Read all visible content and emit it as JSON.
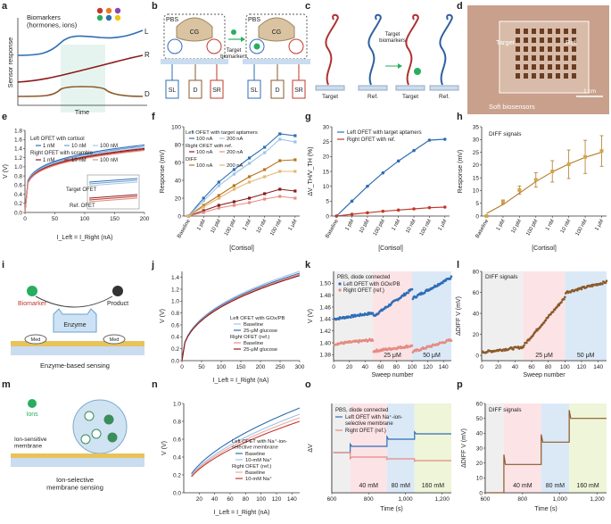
{
  "panel_letters": [
    "a",
    "b",
    "c",
    "d",
    "e",
    "f",
    "g",
    "h",
    "i",
    "j",
    "k",
    "l",
    "m",
    "n",
    "o",
    "p"
  ],
  "colors": {
    "blue": "#2f6db5",
    "red": "#c0392b",
    "darkred": "#8b1a1a",
    "brown": "#8b5a2b",
    "orange": "#d4883a",
    "pink": "#f4b6c2",
    "lightblue": "#9cc3e6",
    "tan": "#c8a46a"
  },
  "panel_a": {
    "title": "Biomarkers\n(hormones, ions)",
    "ylabel": "Sensor response",
    "xlabel": "Time",
    "labels": [
      "L",
      "R",
      "D"
    ]
  },
  "panel_b": {
    "left_box": "PBS",
    "right_box": "PBS",
    "protein": "CG",
    "arrow_label": "Target\nbiomarkers",
    "electrodes": [
      "SL",
      "D",
      "SR"
    ]
  },
  "panel_c": {
    "arrow_label": "Target\nbiomarkers",
    "bases": [
      "Target",
      "Ref.",
      "Target",
      "Ref."
    ]
  },
  "panel_d": {
    "labels": [
      "Target",
      "Ref."
    ],
    "scale": "1 cm",
    "caption": "Soft biosensors"
  },
  "panel_i": {
    "labels": [
      "Biomarker",
      "Product",
      "Enzyme",
      "Med",
      "Med"
    ],
    "caption": "Enzyme-based sensing"
  },
  "panel_m": {
    "labels": [
      "Ions",
      "Ion-sensitive\nmembrane"
    ],
    "caption": "Ion-selective\nmembrane sensing"
  },
  "chart_data": [
    {
      "panel": "e",
      "type": "line",
      "xlabel": "I_Left = I_Right (nA)",
      "ylabel": "V (V)",
      "xlim": [
        0,
        200
      ],
      "ylim": [
        0,
        1.8
      ],
      "xticks": [
        0,
        50,
        100,
        150,
        200
      ],
      "yticks": [
        0,
        0.2,
        0.4,
        0.6,
        0.8,
        1.0,
        1.2,
        1.4,
        1.6,
        1.8
      ],
      "legend": {
        "group1": "Left OFET with cortisol",
        "group1_items": [
          "1 nM",
          "10 nM",
          "100 nM"
        ],
        "group2": "Right OFET with scramble",
        "group2_items": [
          "1 nM",
          "10 nM",
          "100 nM"
        ]
      },
      "inset_labels": [
        "Target OFET",
        "Ref. OFET"
      ],
      "series": [
        {
          "color": "#2f6db5",
          "v_at_200": 1.48
        },
        {
          "color": "#6f9fd6",
          "v_at_200": 1.45
        },
        {
          "color": "#a9c7ea",
          "v_at_200": 1.42
        },
        {
          "color": "#8b1a1a",
          "v_at_200": 1.4
        },
        {
          "color": "#c0392b",
          "v_at_200": 1.38
        },
        {
          "color": "#e58b82",
          "v_at_200": 1.36
        }
      ]
    },
    {
      "panel": "f",
      "type": "line",
      "categories": [
        "Baseline",
        "1 pM",
        "10 pM",
        "100 pM",
        "1 nM",
        "10 nM",
        "100 nM",
        "1 μM"
      ],
      "xlabel": "[Cortisol]",
      "ylabel": "Response (mV)",
      "ylim": [
        0,
        100
      ],
      "yticks": [
        0,
        20,
        40,
        60,
        80,
        100
      ],
      "legend_groups": [
        {
          "title": "Left OFET with target aptamers",
          "items": [
            "100 nA",
            "200 nA"
          ]
        },
        {
          "title": "Right OFET with ref.",
          "items": [
            "100 nA",
            "200 nA"
          ]
        },
        {
          "title": "DIFF",
          "items": [
            "100 nA",
            "200 nA"
          ]
        }
      ],
      "series": [
        {
          "name": "Left 100 nA",
          "color": "#2f6db5",
          "values": [
            0,
            20,
            38,
            52,
            65,
            77,
            92,
            90
          ]
        },
        {
          "name": "Left 200 nA",
          "color": "#9cc3e6",
          "values": [
            0,
            17,
            34,
            47,
            59,
            71,
            86,
            83
          ]
        },
        {
          "name": "Right 100 nA",
          "color": "#8b1a1a",
          "values": [
            0,
            6,
            12,
            16,
            20,
            25,
            30,
            28
          ]
        },
        {
          "name": "Right 200 nA",
          "color": "#e58b82",
          "values": [
            0,
            4,
            9,
            12,
            15,
            19,
            22,
            20
          ]
        },
        {
          "name": "DIFF 100 nA",
          "color": "#b8751f",
          "values": [
            0,
            12,
            23,
            34,
            44,
            52,
            62,
            63
          ]
        },
        {
          "name": "DIFF 200 nA",
          "color": "#e3b873",
          "values": [
            0,
            10,
            20,
            30,
            38,
            44,
            50,
            50
          ]
        }
      ]
    },
    {
      "panel": "g",
      "type": "line",
      "categories": [
        "Baseline",
        "1 pM",
        "10 pM",
        "100 pM",
        "1 nM",
        "10 nM",
        "100 nM",
        "1 μM"
      ],
      "xlabel": "[Cortisol]",
      "ylabel": "ΔV_TH/V_TH (%)",
      "ylim": [
        0,
        30
      ],
      "yticks": [
        0,
        5,
        10,
        15,
        20,
        25,
        30
      ],
      "legend": [
        "Left OFET with target aptamers",
        "Right OFET with ref."
      ],
      "series": [
        {
          "name": "Left OFET with target aptamers",
          "color": "#2f6db5",
          "values": [
            0,
            5,
            10,
            14.5,
            18.5,
            22,
            25.5,
            25.8
          ]
        },
        {
          "name": "Right OFET with ref.",
          "color": "#c0392b",
          "values": [
            0,
            0.6,
            1.1,
            1.6,
            2.0,
            2.4,
            2.8,
            3.0
          ]
        }
      ]
    },
    {
      "panel": "h",
      "type": "scatter",
      "categories": [
        "Baseline",
        "1 pM",
        "10 pM",
        "100 pM",
        "1 nM",
        "10 nM",
        "100 nM",
        "1 μM"
      ],
      "xlabel": "[Cortisol]",
      "ylabel": "Response (mV)",
      "ylim": [
        0,
        35
      ],
      "yticks": [
        0,
        5,
        10,
        15,
        20,
        25,
        30,
        35
      ],
      "annotation": "DIFF signals",
      "values": [
        0,
        5.5,
        10.2,
        14.2,
        17.5,
        20.3,
        23.2,
        25.5
      ],
      "errors": [
        0.5,
        0.8,
        1.6,
        2.8,
        4.2,
        5.6,
        6.5,
        6.0
      ],
      "fit": [
        1.0,
        4.5,
        9.0,
        13.5,
        17.3,
        20.4,
        23.0,
        25.0
      ]
    },
    {
      "panel": "j",
      "type": "line",
      "xlabel": "I_Left = I_Right (nA)",
      "ylabel": "V (V)",
      "xlim": [
        0,
        300
      ],
      "ylim": [
        0,
        1.5
      ],
      "xticks": [
        0,
        50,
        100,
        150,
        200,
        250,
        300
      ],
      "yticks": [
        0,
        0.2,
        0.4,
        0.6,
        0.8,
        1.0,
        1.2,
        1.4
      ],
      "legend_groups": [
        {
          "title": "Left OFET with GOx/PB",
          "items": [
            "Baseline",
            "25-μM glucose"
          ]
        },
        {
          "title": "Right OFET (ref.)",
          "items": [
            "Baseline",
            "25-μM glucose"
          ]
        }
      ],
      "series": [
        {
          "name": "Left Baseline",
          "color": "#9cc3e6",
          "v_at_300": 1.5
        },
        {
          "name": "Left 25-μM glucose",
          "color": "#2f6db5",
          "v_at_300": 1.47
        },
        {
          "name": "Right Baseline",
          "color": "#e58b82",
          "v_at_300": 1.45
        },
        {
          "name": "Right 25-μM glucose",
          "color": "#8b1a1a",
          "v_at_300": 1.43
        }
      ]
    },
    {
      "panel": "k",
      "type": "scatter",
      "xlabel": "Sweep number",
      "ylabel": "V (V)",
      "xlim": [
        0,
        150
      ],
      "ylim": [
        1.37,
        1.52
      ],
      "xticks": [
        0,
        20,
        40,
        60,
        80,
        100,
        120,
        140
      ],
      "yticks": [
        1.38,
        1.4,
        1.42,
        1.44,
        1.46,
        1.48,
        1.5
      ],
      "annotation": "PBS, diode connected",
      "legend": [
        "Left OFET with GOx/PB",
        "Right OFET (ref.)"
      ],
      "regions": [
        {
          "x0": 0,
          "x1": 50,
          "label": "",
          "color": "#efefef"
        },
        {
          "x0": 50,
          "x1": 100,
          "label": "25 μM",
          "color": "#fbe3e6"
        },
        {
          "x0": 100,
          "x1": 150,
          "label": "50 μM",
          "color": "#dbe9f7"
        }
      ],
      "series": [
        {
          "name": "Left OFET with GOx/PB",
          "color": "#2f6db5",
          "segments": [
            {
              "x0": 1,
              "x1": 50,
              "y0": 1.44,
              "y1": 1.45
            },
            {
              "x0": 51,
              "x1": 100,
              "y0": 1.445,
              "y1": 1.49
            },
            {
              "x0": 101,
              "x1": 150,
              "y0": 1.475,
              "y1": 1.51
            }
          ]
        },
        {
          "name": "Right OFET (ref.)",
          "color": "#e58b82",
          "segments": [
            {
              "x0": 1,
              "x1": 50,
              "y0": 1.398,
              "y1": 1.405
            },
            {
              "x0": 51,
              "x1": 100,
              "y0": 1.386,
              "y1": 1.395
            },
            {
              "x0": 101,
              "x1": 150,
              "y0": 1.385,
              "y1": 1.405
            }
          ]
        }
      ]
    },
    {
      "panel": "l",
      "type": "scatter",
      "xlabel": "Sweep number",
      "ylabel": "ΔDIFF V (mV)",
      "xlim": [
        0,
        150
      ],
      "ylim": [
        -5,
        80
      ],
      "xticks": [
        0,
        20,
        40,
        60,
        80,
        100,
        120,
        140
      ],
      "yticks": [
        0,
        20,
        40,
        60,
        80
      ],
      "annotation": "DIFF signals",
      "regions": [
        {
          "x0": 0,
          "x1": 50,
          "label": "",
          "color": "#efefef"
        },
        {
          "x0": 50,
          "x1": 100,
          "label": "25 μM",
          "color": "#fbe3e6"
        },
        {
          "x0": 100,
          "x1": 150,
          "label": "50 μM",
          "color": "#dbe9f7"
        }
      ],
      "series": [
        {
          "name": "DIFF",
          "color": "#8b5a2b",
          "segments": [
            {
              "x0": 1,
              "x1": 50,
              "y0": 3,
              "y1": 8
            },
            {
              "x0": 51,
              "x1": 100,
              "y0": 10,
              "y1": 55
            },
            {
              "x0": 101,
              "x1": 150,
              "y0": 60,
              "y1": 70
            }
          ]
        }
      ]
    },
    {
      "panel": "n",
      "type": "line",
      "xlabel": "I_Left = I_Right (nA)",
      "ylabel": "V (V)",
      "xlim": [
        0,
        150
      ],
      "ylim": [
        0,
        1.0
      ],
      "xticks": [
        20,
        40,
        60,
        80,
        100,
        120,
        140
      ],
      "yticks": [
        0,
        0.2,
        0.4,
        0.6,
        0.8,
        1.0
      ],
      "legend_groups": [
        {
          "title": "Left OFET with Na⁺-ion-\nselective membrane",
          "items": [
            "Baseline",
            "10-mM Na⁺"
          ]
        },
        {
          "title": "Right OFET (ref.)",
          "items": [
            "Baseline",
            "10-mM Na⁺"
          ]
        }
      ],
      "series": [
        {
          "name": "Left Baseline",
          "color": "#2f6db5",
          "v_at_end": 0.95
        },
        {
          "name": "Left 10-mM Na⁺",
          "color": "#9cc3e6",
          "v_at_end": 0.88
        },
        {
          "name": "Right Baseline",
          "color": "#f4a6a0",
          "v_at_end": 0.84
        },
        {
          "name": "Right 10-mM Na⁺",
          "color": "#c0392b",
          "v_at_end": 0.8
        }
      ]
    },
    {
      "panel": "o",
      "type": "line",
      "xlabel": "Time (s)",
      "ylabel": "ΔV",
      "xlim": [
        600,
        1250
      ],
      "xticks": [
        600,
        800,
        1000,
        1200
      ],
      "xticklabels": [
        "600",
        "800",
        "1,000",
        "1,200"
      ],
      "annotation": "PBS, diode connected",
      "legend": [
        "Left OFET with Na⁺-ion-\nselective membrane",
        "Right OFET (ref.)"
      ],
      "regions": [
        {
          "x0": 600,
          "x1": 700,
          "label": "",
          "color": "#efefef"
        },
        {
          "x0": 700,
          "x1": 900,
          "label": "40 mM",
          "color": "#fbe3e6"
        },
        {
          "x0": 900,
          "x1": 1050,
          "label": "80 mM",
          "color": "#dbe9f7"
        },
        {
          "x0": 1050,
          "x1": 1250,
          "label": "160 mM",
          "color": "#eef5d8"
        }
      ],
      "series": [
        {
          "name": "Left",
          "color": "#2f6db5",
          "levels": [
            0.45,
            0.52,
            0.6,
            0.66
          ]
        },
        {
          "name": "Right",
          "color": "#e58b82",
          "levels": [
            0.45,
            0.4,
            0.38,
            0.36
          ]
        }
      ]
    },
    {
      "panel": "p",
      "type": "line",
      "xlabel": "Time (s)",
      "ylabel": "ΔDIFF V (mV)",
      "xlim": [
        600,
        1250
      ],
      "ylim": [
        0,
        60
      ],
      "xticks": [
        600,
        800,
        1000,
        1200
      ],
      "xticklabels": [
        "600",
        "800",
        "1,000",
        "1,200"
      ],
      "yticks": [
        0,
        10,
        20,
        30,
        40,
        50,
        60
      ],
      "annotation": "DIFF signals",
      "regions": [
        {
          "x0": 600,
          "x1": 700,
          "label": "",
          "color": "#efefef"
        },
        {
          "x0": 700,
          "x1": 900,
          "label": "40 mM",
          "color": "#fbe3e6"
        },
        {
          "x0": 900,
          "x1": 1050,
          "label": "80 mM",
          "color": "#dbe9f7"
        },
        {
          "x0": 1050,
          "x1": 1250,
          "label": "160 mM",
          "color": "#eef5d8"
        }
      ],
      "series": [
        {
          "name": "DIFF",
          "color": "#8b5a2b",
          "levels": [
            0,
            19,
            34,
            50
          ]
        }
      ]
    }
  ]
}
